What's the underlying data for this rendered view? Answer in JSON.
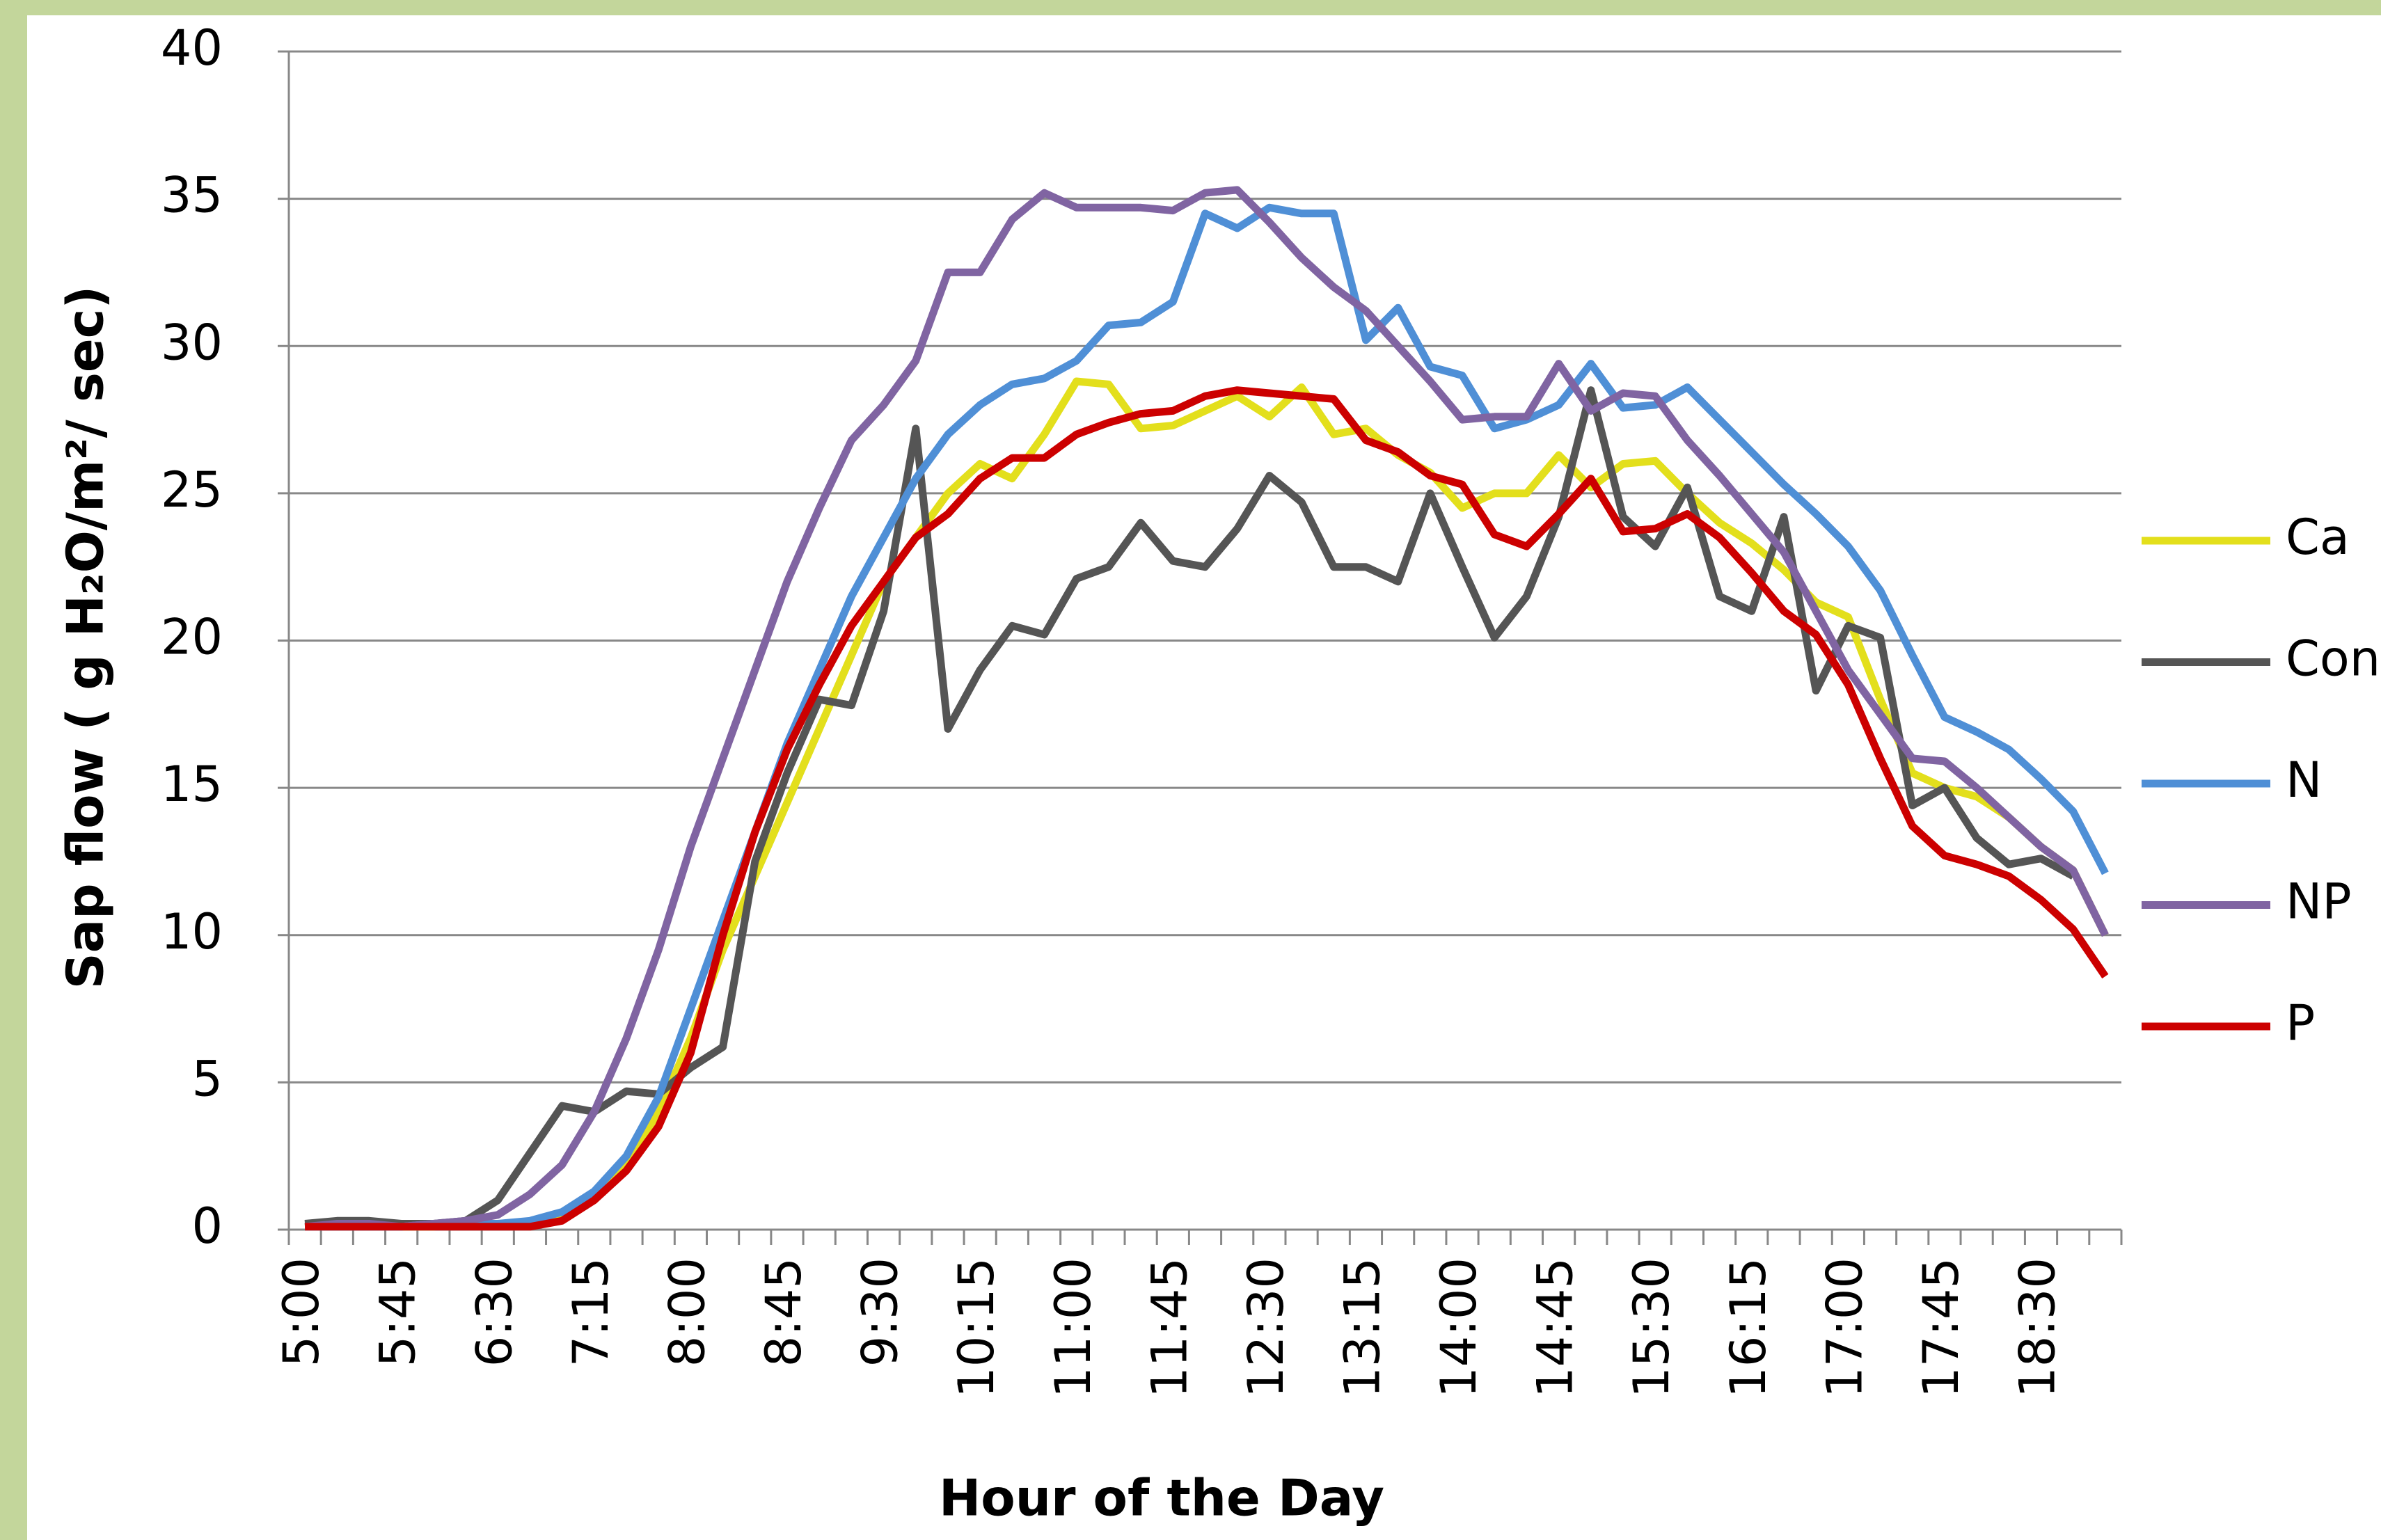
{
  "chart_data": {
    "type": "line",
    "x_label": "Hour of the Day",
    "y_label": "Sap flow ( g H₂O/m²/ sec)",
    "categories": [
      "5:00",
      null,
      null,
      "5:45",
      null,
      null,
      "6:30",
      null,
      null,
      "7:15",
      null,
      null,
      "8:00",
      null,
      null,
      "8:45",
      null,
      null,
      "9:30",
      null,
      null,
      "10:15",
      null,
      null,
      "11:00",
      null,
      null,
      "11:45",
      null,
      null,
      "12:30",
      null,
      null,
      "13:15",
      null,
      null,
      "14:00",
      null,
      null,
      "14:45",
      null,
      null,
      "15:30",
      null,
      null,
      "16:15",
      null,
      null,
      "17:00",
      null,
      null,
      "17:45",
      null,
      null,
      "18:30",
      null,
      null
    ],
    "ylim": [
      0,
      40
    ],
    "yticks": [
      0,
      5,
      10,
      15,
      20,
      25,
      30,
      35,
      40
    ],
    "grid": true,
    "legend": "right",
    "series": [
      {
        "name": "Ca",
        "color": "#e3df1c",
        "values": [
          0.1,
          0.2,
          0.2,
          0.1,
          0.1,
          0.2,
          0.2,
          0.2,
          0.4,
          1,
          2.2,
          4,
          6.5,
          9.5,
          12,
          14.5,
          17,
          19.5,
          22,
          23.5,
          25,
          26,
          25.5,
          27,
          28.8,
          28.7,
          27.2,
          27.3,
          27.8,
          28.3,
          27.6,
          28.6,
          27,
          27.2,
          26.3,
          25.7,
          24.5,
          25,
          25,
          26.3,
          25.2,
          26,
          26.1,
          25,
          24,
          23.3,
          22.4,
          21.3,
          20.8,
          18,
          15.5,
          15,
          14.7,
          14,
          13,
          12.2,
          10
        ]
      },
      {
        "name": "Con",
        "color": "#555555",
        "values": [
          0.2,
          0.3,
          0.3,
          0.2,
          0.2,
          0.3,
          1,
          2.6,
          4.2,
          4,
          4.7,
          4.6,
          5.5,
          6.2,
          12.5,
          15.5,
          18,
          17.8,
          21,
          27.2,
          17,
          19,
          20.5,
          20.2,
          22.1,
          22.5,
          24,
          22.7,
          22.5,
          23.8,
          25.6,
          24.7,
          22.5,
          22.5,
          22,
          25,
          22.5,
          20.1,
          21.5,
          24.2,
          28.5,
          24.2,
          23.2,
          25.2,
          21.5,
          21,
          24.2,
          18.3,
          20.5,
          20.1,
          14.4,
          15,
          13.3,
          12.4,
          12.6,
          12,
          null
        ]
      },
      {
        "name": "N",
        "color": "#4f8fd6",
        "values": [
          0.1,
          0.1,
          0.1,
          0.1,
          0.2,
          0.2,
          0.2,
          0.3,
          0.6,
          1.3,
          2.5,
          4.5,
          7.5,
          10.5,
          13.5,
          16.5,
          19,
          21.5,
          23.5,
          25.5,
          27,
          28,
          28.7,
          28.9,
          29.5,
          30.7,
          30.8,
          31.5,
          34.5,
          34,
          34.7,
          34.5,
          34.5,
          30.2,
          31.3,
          29.3,
          29,
          27.2,
          27.5,
          28,
          29.4,
          27.9,
          28,
          28.6,
          27.5,
          26.4,
          25.3,
          24.3,
          23.2,
          21.7,
          19.5,
          17.4,
          16.9,
          16.3,
          15.3,
          14.2,
          12.1
        ]
      },
      {
        "name": "NP",
        "color": "#8064a2",
        "values": [
          0.1,
          0.2,
          0.2,
          0.1,
          0.2,
          0.3,
          0.5,
          1.2,
          2.2,
          4,
          6.5,
          9.5,
          13,
          16,
          19,
          22,
          24.5,
          26.8,
          28,
          29.5,
          32.5,
          32.5,
          34.3,
          35.2,
          34.7,
          34.7,
          34.7,
          34.6,
          35.2,
          35.3,
          34.2,
          33,
          32,
          31.2,
          30,
          28.8,
          27.5,
          27.6,
          27.6,
          29.4,
          27.8,
          28.4,
          28.3,
          26.8,
          25.6,
          24.3,
          23,
          21,
          19,
          17.5,
          16,
          15.9,
          15,
          14,
          13,
          12.2,
          10
        ]
      },
      {
        "name": "P",
        "color": "#cc0000",
        "values": [
          0.1,
          0.1,
          0.1,
          0.1,
          0.1,
          0.1,
          0.1,
          0.1,
          0.3,
          1,
          2,
          3.5,
          6,
          10,
          13.5,
          16.3,
          18.5,
          20.5,
          22,
          23.5,
          24.3,
          25.5,
          26.2,
          26.2,
          27,
          27.4,
          27.7,
          27.8,
          28.3,
          28.5,
          28.4,
          28.3,
          28.2,
          26.8,
          26.4,
          25.6,
          25.3,
          23.6,
          23.2,
          24.3,
          25.5,
          23.7,
          23.8,
          24.3,
          23.5,
          22.3,
          21,
          20.2,
          18.5,
          16,
          13.7,
          12.7,
          12.4,
          12,
          11.2,
          10.2,
          8.6
        ]
      }
    ]
  }
}
